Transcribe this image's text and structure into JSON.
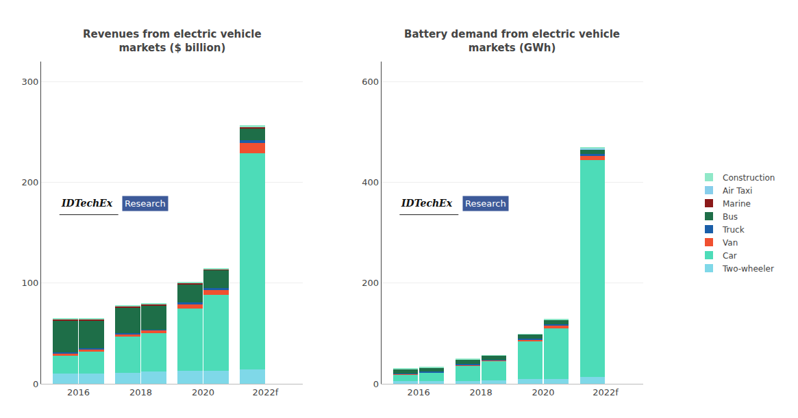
{
  "chart_data": [
    {
      "type": "bar",
      "stacked": true,
      "grid": true,
      "title": "Revenues from electric vehicle\nmarkets ($ billion)",
      "categories": [
        "2016",
        "2018",
        "2020",
        "2022f"
      ],
      "ylim": [
        0,
        320
      ],
      "yticks": [
        0,
        100,
        200,
        300
      ],
      "annotations": [
        {
          "text": "IDTechEx"
        },
        {
          "text": "Research"
        }
      ],
      "series": [
        {
          "name": "Two-wheeler",
          "color": "#7FD8E8",
          "values": [
            [
              10,
              10
            ],
            [
              11,
              12
            ],
            [
              13,
              13
            ],
            [
              14,
              0
            ]
          ]
        },
        {
          "name": "Car",
          "color": "#4DDCB8",
          "values": [
            [
              18,
              22
            ],
            [
              36,
              38
            ],
            [
              62,
              75
            ],
            [
              215,
              0
            ]
          ]
        },
        {
          "name": "Van",
          "color": "#F05030",
          "values": [
            [
              2,
              2
            ],
            [
              2,
              3
            ],
            [
              4,
              5
            ],
            [
              10,
              0
            ]
          ]
        },
        {
          "name": "Truck",
          "color": "#1A5EA8",
          "values": [
            [
              1,
              1
            ],
            [
              1,
              1
            ],
            [
              2,
              2
            ],
            [
              3,
              0
            ]
          ]
        },
        {
          "name": "Bus",
          "color": "#1E6E48",
          "values": [
            [
              32,
              28
            ],
            [
              26,
              24
            ],
            [
              18,
              18
            ],
            [
              12,
              0
            ]
          ]
        },
        {
          "name": "Marine",
          "color": "#8B1A1A",
          "values": [
            [
              1,
              1
            ],
            [
              1,
              1
            ],
            [
              1,
              1
            ],
            [
              1,
              0
            ]
          ]
        },
        {
          "name": "Air Taxi",
          "color": "#87CEEB",
          "values": [
            [
              0,
              0
            ],
            [
              0,
              0
            ],
            [
              0,
              0
            ],
            [
              0,
              0
            ]
          ]
        },
        {
          "name": "Construction",
          "color": "#90E8C8",
          "values": [
            [
              1,
              1
            ],
            [
              1,
              1
            ],
            [
              1,
              1
            ],
            [
              2,
              0
            ]
          ]
        }
      ]
    },
    {
      "type": "bar",
      "stacked": true,
      "grid": true,
      "legend": "right",
      "title": "Battery demand from electric vehicle\nmarkets (GWh)",
      "categories": [
        "2016",
        "2018",
        "2020",
        "2022f"
      ],
      "ylim": [
        0,
        640
      ],
      "yticks": [
        0,
        200,
        400,
        600
      ],
      "annotations": [
        {
          "text": "IDTechEx"
        },
        {
          "text": "Research"
        }
      ],
      "series": [
        {
          "name": "Two-wheeler",
          "color": "#7FD8E8",
          "values": [
            [
              5,
              5
            ],
            [
              6,
              7
            ],
            [
              9,
              10
            ],
            [
              14,
              0
            ]
          ]
        },
        {
          "name": "Car",
          "color": "#4DDCB8",
          "values": [
            [
              14,
              17
            ],
            [
              30,
              38
            ],
            [
              75,
              100
            ],
            [
              430,
              0
            ]
          ]
        },
        {
          "name": "Van",
          "color": "#F05030",
          "values": [
            [
              1,
              1
            ],
            [
              2,
              2
            ],
            [
              4,
              5
            ],
            [
              9,
              0
            ]
          ]
        },
        {
          "name": "Truck",
          "color": "#1A5EA8",
          "values": [
            [
              1,
              1
            ],
            [
              1,
              1
            ],
            [
              2,
              3
            ],
            [
              3,
              0
            ]
          ]
        },
        {
          "name": "Bus",
          "color": "#1E6E48",
          "values": [
            [
              8,
              8
            ],
            [
              9,
              8
            ],
            [
              8,
              9
            ],
            [
              9,
              0
            ]
          ]
        },
        {
          "name": "Marine",
          "color": "#8B1A1A",
          "values": [
            [
              0,
              0
            ],
            [
              0,
              0
            ],
            [
              0,
              0
            ],
            [
              1,
              0
            ]
          ]
        },
        {
          "name": "Air Taxi",
          "color": "#87CEEB",
          "values": [
            [
              0,
              0
            ],
            [
              0,
              0
            ],
            [
              0,
              0
            ],
            [
              1,
              0
            ]
          ]
        },
        {
          "name": "Construction",
          "color": "#90E8C8",
          "values": [
            [
              1,
              1
            ],
            [
              1,
              1
            ],
            [
              1,
              2
            ],
            [
              3,
              0
            ]
          ]
        }
      ]
    }
  ]
}
